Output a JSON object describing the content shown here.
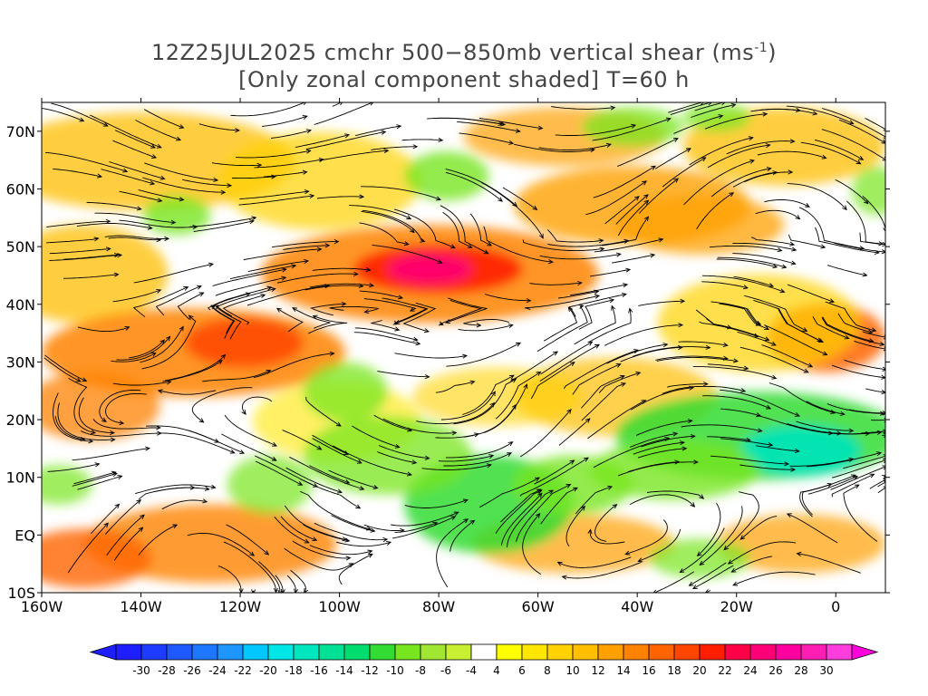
{
  "title": {
    "line1_prefix": "12Z25JUL2025 cmchr 500−850mb vertical shear (ms",
    "line1_sup": "-1",
    "line1_suffix": ")",
    "line2": "[Only zonal component shaded] T=60 h"
  },
  "map": {
    "lon_range": [
      -160,
      10
    ],
    "lat_range": [
      -10,
      75
    ],
    "lat_labels": [
      "70N",
      "60N",
      "50N",
      "40N",
      "30N",
      "20N",
      "10N",
      "EQ",
      "10S"
    ],
    "lon_labels": [
      "160W",
      "140W",
      "120W",
      "100W",
      "80W",
      "60W",
      "40W",
      "20W",
      "0"
    ],
    "streamline_color": "#000000"
  },
  "colorbar": {
    "labels": [
      "-30",
      "-28",
      "-26",
      "-24",
      "-22",
      "-20",
      "-18",
      "-16",
      "-14",
      "-12",
      "-10",
      "-8",
      "-6",
      "-4",
      "4",
      "6",
      "8",
      "10",
      "12",
      "14",
      "16",
      "18",
      "20",
      "22",
      "24",
      "26",
      "28",
      "30"
    ],
    "colors": [
      "#1e1eff",
      "#1e3cff",
      "#1e5aff",
      "#1e78ff",
      "#1e96ff",
      "#00c8ff",
      "#00e6e6",
      "#00e6be",
      "#00e196",
      "#00dc6e",
      "#32dc32",
      "#78e61e",
      "#a0e632",
      "#c8f032",
      "#ffffff",
      "#ffff00",
      "#ffe600",
      "#ffd200",
      "#ffbe00",
      "#ffa000",
      "#ff8200",
      "#ff6400",
      "#ff4600",
      "#ff1e00",
      "#ff0046",
      "#ff0078",
      "#ff00a0",
      "#ff1eb4",
      "#ff3cdc"
    ]
  }
}
